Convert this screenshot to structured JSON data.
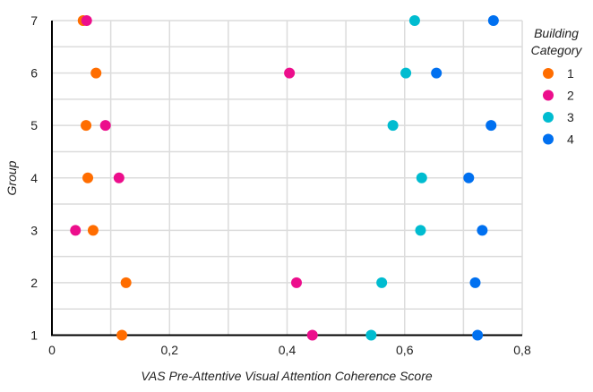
{
  "chart_data": {
    "type": "scatter",
    "title": "",
    "xlabel": "VAS Pre-Attentive Visual Attention Coherence Score",
    "ylabel": "Group",
    "xlim": [
      0,
      0.8
    ],
    "ylim": [
      1,
      7
    ],
    "x_ticks": [
      0,
      0.2,
      0.4,
      0.6,
      0.8
    ],
    "x_tick_labels": [
      "0",
      "0,2",
      "0,4",
      "0,6",
      "0,8"
    ],
    "x_minor_grid_step": 0.1,
    "y_ticks": [
      1,
      2,
      3,
      4,
      5,
      6,
      7
    ],
    "y_tick_labels": [
      "1",
      "2",
      "3",
      "4",
      "5",
      "6",
      "7"
    ],
    "y_minor_grid_step": 0.5,
    "grid": true,
    "legend": {
      "title": "Building Category",
      "placement": "right",
      "entries": [
        "1",
        "2",
        "3",
        "4"
      ]
    },
    "series": [
      {
        "name": "1",
        "color": "#FF6D00",
        "points": [
          {
            "x": 0.053,
            "y": 7
          },
          {
            "x": 0.075,
            "y": 6
          },
          {
            "x": 0.058,
            "y": 5
          },
          {
            "x": 0.061,
            "y": 4
          },
          {
            "x": 0.07,
            "y": 3
          },
          {
            "x": 0.126,
            "y": 2
          },
          {
            "x": 0.119,
            "y": 1
          }
        ]
      },
      {
        "name": "2",
        "color": "#EC0E8C",
        "points": [
          {
            "x": 0.059,
            "y": 7
          },
          {
            "x": 0.404,
            "y": 6
          },
          {
            "x": 0.091,
            "y": 5
          },
          {
            "x": 0.114,
            "y": 4
          },
          {
            "x": 0.04,
            "y": 3
          },
          {
            "x": 0.416,
            "y": 2
          },
          {
            "x": 0.443,
            "y": 1
          }
        ]
      },
      {
        "name": "3",
        "color": "#00BCD0",
        "points": [
          {
            "x": 0.617,
            "y": 7
          },
          {
            "x": 0.602,
            "y": 6
          },
          {
            "x": 0.58,
            "y": 5
          },
          {
            "x": 0.629,
            "y": 4
          },
          {
            "x": 0.627,
            "y": 3
          },
          {
            "x": 0.561,
            "y": 2
          },
          {
            "x": 0.543,
            "y": 1
          }
        ]
      },
      {
        "name": "4",
        "color": "#0070F0",
        "points": [
          {
            "x": 0.751,
            "y": 7
          },
          {
            "x": 0.654,
            "y": 6
          },
          {
            "x": 0.747,
            "y": 5
          },
          {
            "x": 0.709,
            "y": 4
          },
          {
            "x": 0.732,
            "y": 3
          },
          {
            "x": 0.72,
            "y": 2
          },
          {
            "x": 0.724,
            "y": 1
          }
        ]
      }
    ]
  }
}
